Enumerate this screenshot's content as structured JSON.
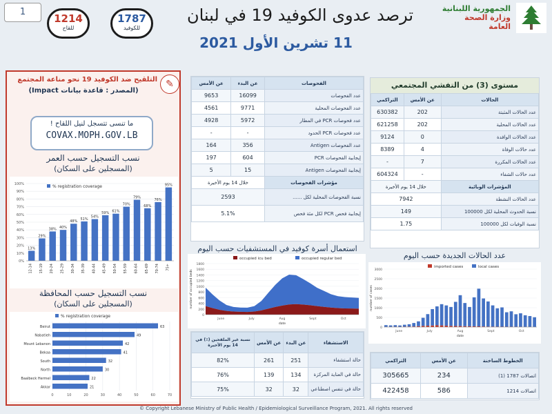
{
  "page_number": "1",
  "header": {
    "title": "ترصد عدوى الكوفيد 19 في لبنان",
    "date": "11 تشرين الأول 2021",
    "vaccination_count": "1214",
    "vaccination_caption": "للقاح",
    "covid_count": "1787",
    "covid_caption": "للكوفيد",
    "ministry_line1": "الجمهورية اللبنانية",
    "ministry_line2": "وزارة الصحة العامة"
  },
  "vaccination_panel": {
    "title": "التلقيح ضد الكوفيد 19 نحو مناعة المجتمع",
    "source": "(المصدر : قاعدة بيانات Impact)",
    "reminder": "ما تنسى تتسجل لنيل اللقاح !",
    "url": "COVAX.MOPH.GOV.LB",
    "age_title": "نسب التسجيل حسب العمر",
    "age_subtitle": "(المسجلين على السكان)",
    "gov_title": "نسب التسجيل حسب المحافظة",
    "gov_subtitle": "(المسجلين على السكان)"
  },
  "tests": {
    "header": [
      "الفحوصات",
      "عن البدء",
      "عن الأمس"
    ],
    "rows": [
      [
        "عدد الفحوصات",
        "16099",
        "9653"
      ],
      [
        "عدد الفحوصات المحلية",
        "9771",
        "4561"
      ],
      [
        "عدد فحوصات PCR في المطار",
        "5972",
        "4928"
      ],
      [
        "عدد فحوصات PCR الحدود",
        "-",
        "-"
      ],
      [
        "عدد الفحوصات Antigen",
        "356",
        "164"
      ],
      [
        "إيجابية الفحوصات PCR",
        "604",
        "197"
      ],
      [
        "إيجابية الفحوصات Antigen",
        "15",
        "5"
      ]
    ],
    "indicators_label": "مؤشرات الفحوصات",
    "indicators_period": "خلال 14 يوم الأخيرة",
    "indicator_rows": [
      [
        "نسبة الفحوصات المحلية لكل ......",
        "2593"
      ],
      [
        "إيجابية فحص PCR لكل مئة فحص",
        "5.1%"
      ]
    ]
  },
  "community": {
    "title": "مستوى (3) من التفشي المجتمعي",
    "header": [
      "الحالات",
      "عن الأمس",
      "التراكمي"
    ],
    "rows": [
      [
        "عدد الحالات المثبتة",
        "202",
        "630382"
      ],
      [
        "عدد الحالات المحلية",
        "202",
        "621258"
      ],
      [
        "عدد الحالات الوافدة",
        "0",
        "9124"
      ],
      [
        "عدد حالات الوفاة",
        "4",
        "8389"
      ],
      [
        "عدد الحالات المكررة",
        "7",
        "-"
      ],
      [
        "عدد حالات الشفاء",
        "-",
        "604324"
      ]
    ],
    "indicators_label": "المؤشرات الوبائية",
    "indicators_period": "خلال 14 يوم الأخيرة",
    "indicator_rows": [
      [
        "عدد الحالات النشطة",
        "7942"
      ],
      [
        "نسبة الحدوث المحلية لكل 100000",
        "149"
      ],
      [
        "نسبة الوفيات لكل 100000",
        "1.75"
      ]
    ]
  },
  "hospital_chart_title": "استعمال أسرة كوفيد في المستشفيات حسب اليوم",
  "cases_chart_title": "عدد الحالات الجديدة حسب اليوم",
  "hospital": {
    "header": [
      "الاستشفاء",
      "عن البدء",
      "عن الأمس",
      "نسبة غير الملقحين (٪) في 14 يوم الأخيرة"
    ],
    "rows": [
      [
        "حالة استشفاء",
        "251",
        "261",
        "82%"
      ],
      [
        "حالة في العناية المركزة",
        "134",
        "139",
        "76%"
      ],
      [
        "حالة في تنفس اصطناعي",
        "32",
        "32",
        "75%"
      ]
    ]
  },
  "hotlines": {
    "header": [
      "الخطوط الساخنة",
      "عن الأمس",
      "التراكمي"
    ],
    "rows": [
      [
        "اتصالات 1787 (1)",
        "234",
        "305665"
      ],
      [
        "اتصالات 1214",
        "586",
        "422458"
      ]
    ]
  },
  "footer": "© Copyright Lebanese Ministry of Public Health / Epidemiological Surveillance Program, 2021. All rights reserved",
  "colors": {
    "accent_red": "#c0392b",
    "chart_bar": "#4472c4",
    "icu_red": "#8b1a1a",
    "regular_blue": "#3f6fc9",
    "title_blue": "#2c5aa0"
  },
  "chart_data": [
    {
      "type": "bar",
      "title": "",
      "legend": "% registration coverage",
      "categories": [
        "12-14",
        "15-19",
        "20-24",
        "25-29",
        "30-34",
        "35-39",
        "40-44",
        "45-49",
        "50-54",
        "55-59",
        "60-64",
        "65-69",
        "70-74",
        "75+"
      ],
      "values": [
        13,
        29,
        38,
        40,
        48,
        51,
        54,
        59,
        61,
        70,
        79,
        68,
        76,
        95
      ],
      "value_labels": [
        "13%",
        "29%",
        "38%",
        "40%",
        "48%",
        "51%",
        "54%",
        "59%",
        "61%",
        "70%",
        "79%",
        "68%",
        "76%",
        "95%"
      ],
      "yticks": [
        "0%",
        "10%",
        "20%",
        "30%",
        "40%",
        "50%",
        "60%",
        "70%",
        "80%",
        "90%",
        "100%"
      ],
      "ylim": [
        0,
        100
      ]
    },
    {
      "type": "bar",
      "orientation": "horizontal",
      "title": "",
      "legend": "% registration coverage",
      "categories": [
        "Beirut",
        "Nabatieh",
        "Mount Lebanon",
        "Bekaa",
        "South",
        "North",
        "Baalbeck Hermel",
        "Akkar"
      ],
      "values": [
        63,
        49,
        42,
        41,
        32,
        30,
        22,
        21
      ],
      "xticks": [
        "0",
        "10",
        "20",
        "30",
        "40",
        "50",
        "60",
        "70"
      ],
      "xlim": [
        0,
        70
      ]
    },
    {
      "type": "area",
      "title": "",
      "series": [
        {
          "name": "occupied icu bed",
          "color": "#8b1a1a"
        },
        {
          "name": "occupied regular bed",
          "color": "#3f6fc9"
        }
      ],
      "xticks": [
        "June",
        "July",
        "Aug",
        "Sept",
        "Oct"
      ],
      "yticks": [
        "0",
        "200",
        "400",
        "600",
        "800",
        "1000",
        "1200",
        "1400",
        "1600",
        "1800"
      ],
      "ylim": [
        0,
        1800
      ],
      "ylabel": "number of occupied beds",
      "xlabel": "date",
      "icu_profile": [
        300,
        230,
        170,
        130,
        110,
        100,
        95,
        110,
        150,
        210,
        270,
        320,
        360,
        370,
        355,
        330,
        300,
        275,
        250,
        230,
        220,
        215,
        210
      ],
      "regular_profile": [
        650,
        480,
        330,
        210,
        160,
        150,
        150,
        190,
        330,
        560,
        780,
        960,
        1050,
        1020,
        900,
        780,
        650,
        560,
        470,
        420,
        400,
        390,
        380
      ]
    },
    {
      "type": "bar",
      "title": "",
      "series": [
        {
          "name": "imported cases",
          "color": "#c0392b"
        },
        {
          "name": "local cases",
          "color": "#4472c4"
        }
      ],
      "xticks": [
        "June",
        "July",
        "Aug",
        "Sept",
        "Oct"
      ],
      "yticks": [
        "0",
        "500",
        "1000",
        "1500",
        "2000",
        "2500",
        "3000"
      ],
      "ylim": [
        0,
        3000
      ],
      "ylabel": "number of cases",
      "xlabel": "date",
      "local_profile": [
        90,
        75,
        85,
        70,
        100,
        120,
        180,
        250,
        420,
        600,
        850,
        980,
        1100,
        1050,
        980,
        1250,
        1600,
        1200,
        1000,
        1500,
        1950,
        1450,
        1300,
        1100,
        950,
        1000,
        750,
        800,
        650,
        700,
        600,
        560,
        500
      ],
      "imported_profile": [
        10,
        12,
        15,
        14,
        20,
        25,
        30,
        45,
        60,
        70,
        80,
        90,
        85,
        70,
        60,
        55,
        50,
        45,
        40,
        38,
        36,
        30,
        25,
        22,
        20,
        18,
        16,
        15,
        14,
        12,
        10,
        10,
        8
      ]
    }
  ]
}
